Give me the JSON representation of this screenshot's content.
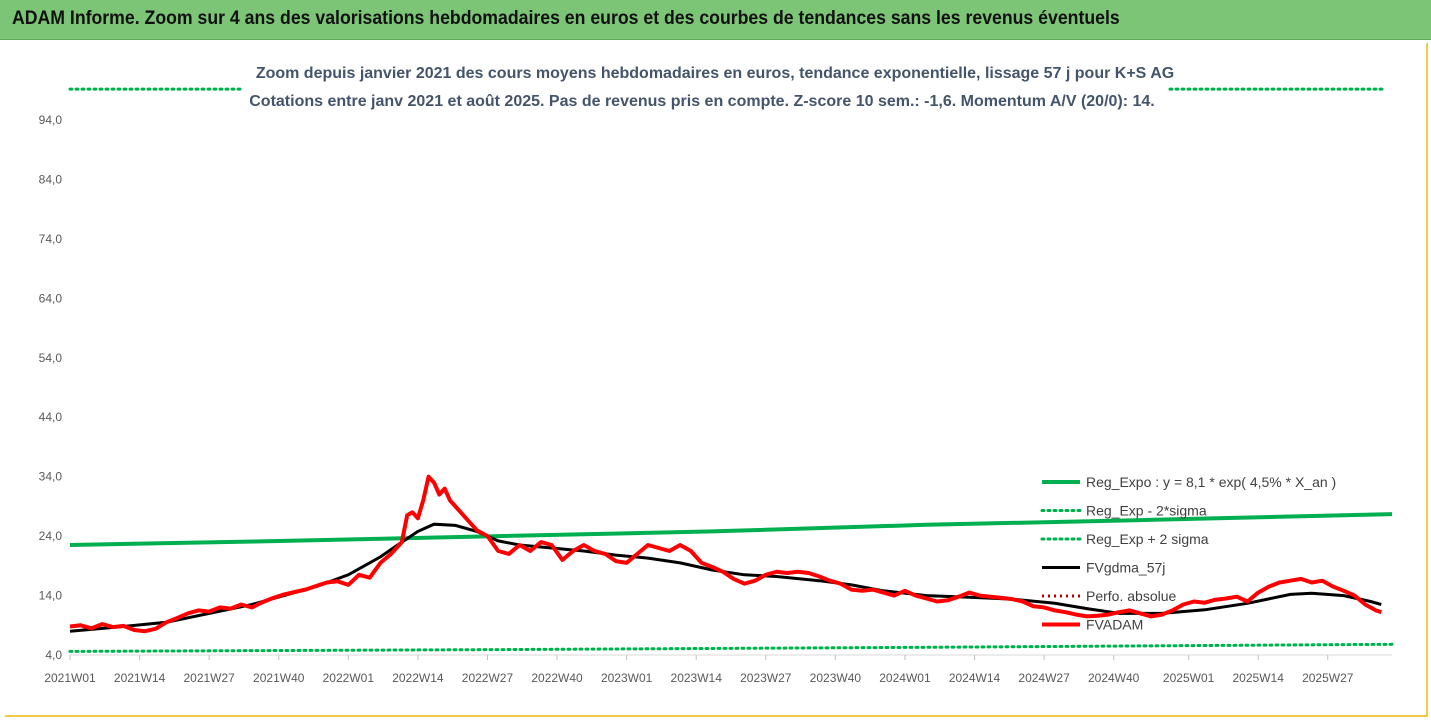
{
  "banner": {
    "title": "ADAM Informe. Zoom sur 4 ans des valorisations hebdomadaires en euros et des courbes de tendances sans les revenus éventuels"
  },
  "colors": {
    "banner_bg": "#7cc576",
    "reg_expo": "#00b050",
    "fvgdma": "#000000",
    "perfo": "#c00000",
    "fvadam": "#ff0000",
    "frame_border": "#f2c84b"
  },
  "chart_data": {
    "type": "line",
    "title_lines": [
      "Zoom depuis janvier 2021 des cours moyens hebdomadaires en euros, tendance exponentielle, lissage 57 j pour K+S AG",
      "Cotations entre janv 2021 et août 2025.  Pas de revenus pris en compte. Z-score 10 sem.: -1,6. Momentum A/V (20/0): 14."
    ],
    "ylim": [
      4,
      104
    ],
    "y_ticks": [
      "4,0",
      "14,0",
      "24,0",
      "34,0",
      "44,0",
      "54,0",
      "64,0",
      "74,0",
      "84,0",
      "94,0"
    ],
    "y_tick_values": [
      4,
      14,
      24,
      34,
      44,
      54,
      64,
      74,
      84,
      94
    ],
    "x_ticks": [
      "2021W01",
      "2021W14",
      "2021W27",
      "2021W40",
      "2022W01",
      "2022W14",
      "2022W27",
      "2022W40",
      "2023W01",
      "2023W14",
      "2023W27",
      "2023W40",
      "2024W01",
      "2024W14",
      "2024W27",
      "2024W40",
      "2025W01",
      "2025W14",
      "2025W27"
    ],
    "x_tick_weeks": [
      0,
      13,
      26,
      39,
      52,
      65,
      78,
      91,
      104,
      117,
      130,
      143,
      156,
      169,
      182,
      195,
      209,
      222,
      235
    ],
    "xlim_weeks": [
      0,
      247
    ],
    "legend": [
      {
        "key": "reg_expo",
        "label": "Reg_Expo : y = 8,1 * exp( 4,5% *  X_an )"
      },
      {
        "key": "minus2",
        "label": "Reg_Exp - 2*sigma"
      },
      {
        "key": "plus2",
        "label": "Reg_Exp + 2 sigma"
      },
      {
        "key": "fvgdma",
        "label": "FVgdma_57j"
      },
      {
        "key": "perfo",
        "label": "Perfo. absolue"
      },
      {
        "key": "fvadam",
        "label": "FVADAM"
      }
    ],
    "series": [
      {
        "name": "Reg_Expo : y = 8,1 * exp( 4,5% *  X_an )",
        "key": "reg_expo",
        "points": [
          [
            0,
            22.5
          ],
          [
            40,
            23.2
          ],
          [
            80,
            24.0
          ],
          [
            120,
            24.8
          ],
          [
            160,
            25.9
          ],
          [
            200,
            26.7
          ],
          [
            247,
            27.7
          ]
        ]
      },
      {
        "name": "Reg_Exp - 2*sigma",
        "key": "minus2",
        "points": [
          [
            0,
            4.6
          ],
          [
            80,
            4.9
          ],
          [
            160,
            5.3
          ],
          [
            247,
            5.8
          ]
        ]
      },
      {
        "name": "Reg_Exp + 2 sigma",
        "key": "plus2",
        "points": [
          [
            0,
            99.2
          ],
          [
            247,
            99.2
          ]
        ]
      },
      {
        "name": "FVgdma_57j",
        "key": "fvgdma",
        "points": [
          [
            0,
            8.0
          ],
          [
            10,
            8.8
          ],
          [
            18,
            9.5
          ],
          [
            26,
            11.0
          ],
          [
            34,
            12.5
          ],
          [
            40,
            14.0
          ],
          [
            46,
            15.5
          ],
          [
            52,
            17.5
          ],
          [
            58,
            20.5
          ],
          [
            62,
            23.0
          ],
          [
            65,
            24.8
          ],
          [
            68,
            26.0
          ],
          [
            72,
            25.8
          ],
          [
            76,
            24.8
          ],
          [
            80,
            23.2
          ],
          [
            84,
            22.5
          ],
          [
            90,
            22.0
          ],
          [
            96,
            21.5
          ],
          [
            102,
            20.8
          ],
          [
            108,
            20.3
          ],
          [
            114,
            19.5
          ],
          [
            120,
            18.3
          ],
          [
            126,
            17.5
          ],
          [
            132,
            17.2
          ],
          [
            140,
            16.5
          ],
          [
            146,
            15.8
          ],
          [
            152,
            14.8
          ],
          [
            160,
            14.0
          ],
          [
            168,
            13.7
          ],
          [
            176,
            13.4
          ],
          [
            184,
            12.7
          ],
          [
            190,
            11.8
          ],
          [
            196,
            11.0
          ],
          [
            204,
            11.0
          ],
          [
            212,
            11.6
          ],
          [
            220,
            12.7
          ],
          [
            228,
            14.2
          ],
          [
            232,
            14.4
          ],
          [
            238,
            14.0
          ],
          [
            243,
            13.0
          ],
          [
            245,
            12.5
          ]
        ]
      },
      {
        "name": "FVADAM",
        "key": "fvadam",
        "points": [
          [
            0,
            8.8
          ],
          [
            2,
            9.0
          ],
          [
            4,
            8.5
          ],
          [
            6,
            9.2
          ],
          [
            8,
            8.7
          ],
          [
            10,
            8.9
          ],
          [
            12,
            8.2
          ],
          [
            14,
            8.0
          ],
          [
            16,
            8.4
          ],
          [
            18,
            9.5
          ],
          [
            20,
            10.2
          ],
          [
            22,
            11.0
          ],
          [
            24,
            11.5
          ],
          [
            26,
            11.3
          ],
          [
            28,
            12.0
          ],
          [
            30,
            11.8
          ],
          [
            32,
            12.5
          ],
          [
            34,
            12.0
          ],
          [
            36,
            12.9
          ],
          [
            38,
            13.6
          ],
          [
            40,
            14.2
          ],
          [
            42,
            14.6
          ],
          [
            44,
            15.0
          ],
          [
            46,
            15.6
          ],
          [
            48,
            16.2
          ],
          [
            50,
            16.4
          ],
          [
            52,
            15.8
          ],
          [
            54,
            17.5
          ],
          [
            56,
            17.0
          ],
          [
            58,
            19.5
          ],
          [
            60,
            21.0
          ],
          [
            62,
            23.0
          ],
          [
            63,
            27.5
          ],
          [
            64,
            28.0
          ],
          [
            65,
            27.0
          ],
          [
            66,
            30.0
          ],
          [
            67,
            34.0
          ],
          [
            68,
            33.0
          ],
          [
            69,
            31.0
          ],
          [
            70,
            32.0
          ],
          [
            71,
            30.0
          ],
          [
            72,
            29.0
          ],
          [
            74,
            27.0
          ],
          [
            76,
            25.0
          ],
          [
            78,
            24.0
          ],
          [
            80,
            21.5
          ],
          [
            82,
            21.0
          ],
          [
            84,
            22.5
          ],
          [
            86,
            21.5
          ],
          [
            88,
            23.0
          ],
          [
            90,
            22.5
          ],
          [
            92,
            20.0
          ],
          [
            94,
            21.5
          ],
          [
            96,
            22.5
          ],
          [
            98,
            21.5
          ],
          [
            100,
            21.0
          ],
          [
            102,
            19.8
          ],
          [
            104,
            19.5
          ],
          [
            106,
            21.0
          ],
          [
            108,
            22.5
          ],
          [
            110,
            22.0
          ],
          [
            112,
            21.5
          ],
          [
            114,
            22.5
          ],
          [
            116,
            21.5
          ],
          [
            118,
            19.5
          ],
          [
            120,
            18.8
          ],
          [
            122,
            18.0
          ],
          [
            124,
            16.8
          ],
          [
            126,
            16.0
          ],
          [
            128,
            16.5
          ],
          [
            130,
            17.5
          ],
          [
            132,
            18.0
          ],
          [
            134,
            17.8
          ],
          [
            136,
            18.0
          ],
          [
            138,
            17.8
          ],
          [
            140,
            17.2
          ],
          [
            142,
            16.5
          ],
          [
            144,
            16.0
          ],
          [
            146,
            15.0
          ],
          [
            148,
            14.8
          ],
          [
            150,
            15.0
          ],
          [
            152,
            14.5
          ],
          [
            154,
            14.0
          ],
          [
            156,
            14.8
          ],
          [
            158,
            14.0
          ],
          [
            160,
            13.5
          ],
          [
            162,
            13.0
          ],
          [
            164,
            13.2
          ],
          [
            166,
            13.8
          ],
          [
            168,
            14.5
          ],
          [
            170,
            14.0
          ],
          [
            172,
            13.8
          ],
          [
            174,
            13.6
          ],
          [
            176,
            13.4
          ],
          [
            178,
            13.0
          ],
          [
            180,
            12.2
          ],
          [
            182,
            12.0
          ],
          [
            184,
            11.5
          ],
          [
            186,
            11.2
          ],
          [
            188,
            10.8
          ],
          [
            190,
            10.5
          ],
          [
            192,
            10.6
          ],
          [
            194,
            10.8
          ],
          [
            196,
            11.2
          ],
          [
            198,
            11.5
          ],
          [
            200,
            11.0
          ],
          [
            202,
            10.5
          ],
          [
            204,
            10.8
          ],
          [
            206,
            11.5
          ],
          [
            208,
            12.5
          ],
          [
            210,
            13.0
          ],
          [
            212,
            12.8
          ],
          [
            214,
            13.3
          ],
          [
            216,
            13.5
          ],
          [
            218,
            13.8
          ],
          [
            220,
            13.0
          ],
          [
            222,
            14.5
          ],
          [
            224,
            15.5
          ],
          [
            226,
            16.2
          ],
          [
            228,
            16.5
          ],
          [
            230,
            16.8
          ],
          [
            232,
            16.2
          ],
          [
            234,
            16.5
          ],
          [
            236,
            15.5
          ],
          [
            238,
            14.8
          ],
          [
            240,
            14.0
          ],
          [
            242,
            12.5
          ],
          [
            244,
            11.5
          ],
          [
            245,
            11.2
          ]
        ]
      }
    ]
  }
}
